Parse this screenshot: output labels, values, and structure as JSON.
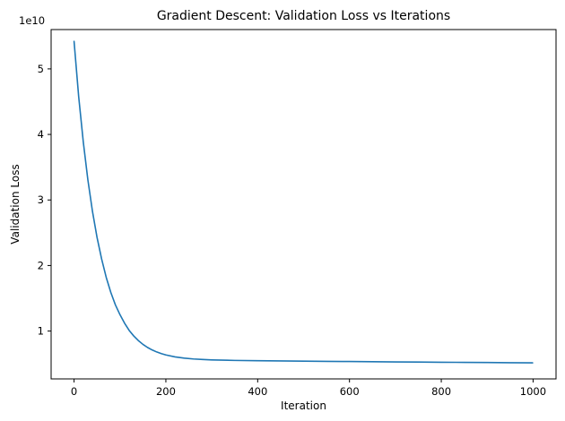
{
  "chart_data": {
    "type": "line",
    "title": "Gradient Descent: Validation Loss vs Iterations",
    "xlabel": "Iteration",
    "ylabel": "Validation Loss",
    "y_offset_label": "1e10",
    "xlim": [
      -50,
      1050
    ],
    "ylim": [
      0.27,
      5.6
    ],
    "x_ticks": [
      0,
      200,
      400,
      600,
      800,
      1000
    ],
    "y_ticks": [
      1,
      2,
      3,
      4,
      5
    ],
    "grid": false,
    "series": [
      {
        "color": "#1f77b4",
        "x": [
          0,
          10,
          20,
          30,
          40,
          50,
          60,
          70,
          80,
          90,
          100,
          110,
          120,
          130,
          140,
          150,
          160,
          170,
          180,
          190,
          200,
          220,
          240,
          260,
          280,
          300,
          350,
          400,
          450,
          500,
          550,
          600,
          650,
          700,
          750,
          800,
          850,
          900,
          950,
          999
        ],
        "y": [
          5.42,
          4.58,
          3.89,
          3.31,
          2.83,
          2.43,
          2.1,
          1.82,
          1.59,
          1.4,
          1.25,
          1.12,
          1.01,
          0.925,
          0.855,
          0.797,
          0.75,
          0.712,
          0.681,
          0.656,
          0.636,
          0.606,
          0.587,
          0.574,
          0.566,
          0.56,
          0.552,
          0.548,
          0.544,
          0.541,
          0.538,
          0.535,
          0.532,
          0.529,
          0.527,
          0.524,
          0.522,
          0.52,
          0.517,
          0.515
        ]
      }
    ]
  }
}
